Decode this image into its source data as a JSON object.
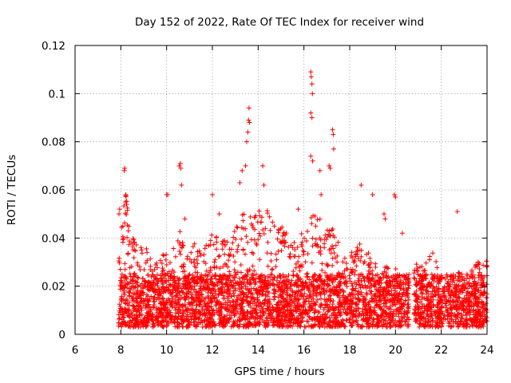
{
  "chart_data": {
    "type": "scatter",
    "title": "Day 152 of 2022, Rate Of TEC Index for receiver wind",
    "xlabel": "GPS time / hours",
    "ylabel": "ROTI / TECUs",
    "xlim": [
      6,
      24
    ],
    "ylim": [
      0,
      0.12
    ],
    "xticks": [
      6,
      8,
      10,
      12,
      14,
      16,
      18,
      20,
      22,
      24
    ],
    "xtick_labels": [
      "6",
      "8",
      "10",
      "12",
      "14",
      "16",
      "18",
      "20",
      "22",
      "24"
    ],
    "yticks": [
      0,
      0.02,
      0.04,
      0.06,
      0.08,
      0.1,
      0.12
    ],
    "ytick_labels": [
      "0",
      "0.02",
      "0.04",
      "0.06",
      "0.08",
      "0.1",
      "0.12"
    ],
    "grid": true,
    "marker": "+",
    "series_color": "#ff0000",
    "data_gaps_hours": [
      [
        20.6,
        20.8
      ]
    ],
    "envelope": {
      "x": [
        7.9,
        8.0,
        8.2,
        8.5,
        8.8,
        9.0,
        9.3,
        9.6,
        10.0,
        10.4,
        10.6,
        10.8,
        11.2,
        11.6,
        12.0,
        12.4,
        12.8,
        13.0,
        13.3,
        13.5,
        13.7,
        14.0,
        14.3,
        14.6,
        15.0,
        15.3,
        15.6,
        15.9,
        16.2,
        16.4,
        16.6,
        16.9,
        17.2,
        17.5,
        17.8,
        18.2,
        18.6,
        19.0,
        19.5,
        20.0,
        20.5,
        20.8,
        21.2,
        21.6,
        22.0,
        22.4,
        22.8,
        23.2,
        23.6,
        24.0
      ],
      "peak": [
        0.04,
        0.045,
        0.06,
        0.042,
        0.038,
        0.04,
        0.032,
        0.03,
        0.035,
        0.038,
        0.045,
        0.036,
        0.04,
        0.035,
        0.042,
        0.04,
        0.038,
        0.045,
        0.05,
        0.055,
        0.048,
        0.052,
        0.058,
        0.048,
        0.045,
        0.042,
        0.038,
        0.042,
        0.05,
        0.055,
        0.05,
        0.045,
        0.05,
        0.038,
        0.032,
        0.036,
        0.04,
        0.03,
        0.028,
        0.03,
        0.026,
        0.03,
        0.028,
        0.035,
        0.025,
        0.028,
        0.026,
        0.025,
        0.03,
        0.032
      ]
    },
    "highlights": [
      [
        7.92,
        0.05
      ],
      [
        7.95,
        0.052
      ],
      [
        8.15,
        0.068
      ],
      [
        8.17,
        0.069
      ],
      [
        8.2,
        0.055
      ],
      [
        8.22,
        0.058
      ],
      [
        8.25,
        0.054
      ],
      [
        10.0,
        0.058
      ],
      [
        10.05,
        0.058
      ],
      [
        10.55,
        0.07
      ],
      [
        10.6,
        0.071
      ],
      [
        10.62,
        0.069
      ],
      [
        10.65,
        0.062
      ],
      [
        10.8,
        0.048
      ],
      [
        12.0,
        0.058
      ],
      [
        12.3,
        0.05
      ],
      [
        13.2,
        0.063
      ],
      [
        13.3,
        0.068
      ],
      [
        13.45,
        0.07
      ],
      [
        13.5,
        0.08
      ],
      [
        13.55,
        0.084
      ],
      [
        13.58,
        0.089
      ],
      [
        13.6,
        0.094
      ],
      [
        13.62,
        0.088
      ],
      [
        14.2,
        0.07
      ],
      [
        14.25,
        0.062
      ],
      [
        15.75,
        0.052
      ],
      [
        16.3,
        0.109
      ],
      [
        16.32,
        0.107
      ],
      [
        16.35,
        0.104
      ],
      [
        16.37,
        0.1
      ],
      [
        16.3,
        0.092
      ],
      [
        16.35,
        0.09
      ],
      [
        16.3,
        0.074
      ],
      [
        16.38,
        0.072
      ],
      [
        16.7,
        0.068
      ],
      [
        16.75,
        0.058
      ],
      [
        17.1,
        0.07
      ],
      [
        17.15,
        0.069
      ],
      [
        17.25,
        0.085
      ],
      [
        17.28,
        0.083
      ],
      [
        17.3,
        0.077
      ],
      [
        18.5,
        0.062
      ],
      [
        19.0,
        0.058
      ],
      [
        19.5,
        0.05
      ],
      [
        19.55,
        0.048
      ],
      [
        19.95,
        0.058
      ],
      [
        20.0,
        0.057
      ],
      [
        20.3,
        0.042
      ],
      [
        22.7,
        0.051
      ]
    ]
  }
}
